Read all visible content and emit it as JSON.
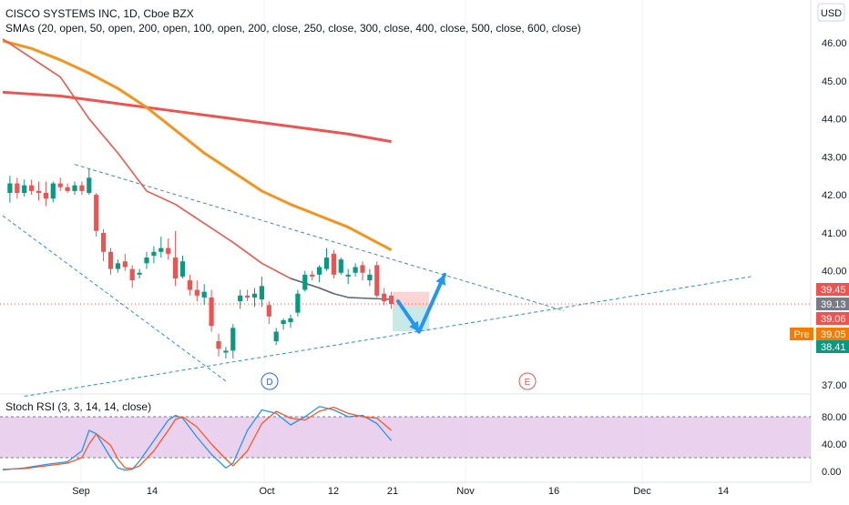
{
  "header": {
    "title": "CISCO SYSTEMS INC, 1D, Cboe BZX",
    "sma_label": "SMAs (20, open, 50, open, 200, open, 100, open, 200, close, 250, close, 300, close, 400, close, 500, close, 600, close)",
    "currency": "USD"
  },
  "rsi_panel": {
    "label": "Stoch RSI (3, 3, 14, 14, close)"
  },
  "price_badges": [
    {
      "value": "39.45",
      "color": "#ef5350"
    },
    {
      "value": "39.13",
      "color": "#787b86"
    },
    {
      "value": "39.06",
      "color": "#ef5350"
    },
    {
      "value": "39.05",
      "color": "#f57c00",
      "tag": "Pre"
    },
    {
      "value": "38.41",
      "color": "#089981"
    }
  ],
  "markers": [
    {
      "letter": "D",
      "color": "#2962ff"
    },
    {
      "letter": "E",
      "color": "#ef5350"
    }
  ],
  "colors": {
    "up": "#089981",
    "down": "#ef5350",
    "sma_red": "#f0574a",
    "sma_orange": "#f7931a",
    "sma_long": "#ef5350",
    "trend": "#2a8fd9",
    "arrow": "#2196f3",
    "rsi_k": "#2196f3",
    "rsi_d": "#ff5722",
    "rsi_band": "#e1bee7"
  },
  "chart_data": [
    {
      "type": "candlestick",
      "title": "CISCO SYSTEMS INC, 1D, Cboe BZX",
      "ylim": [
        36.8,
        46.6
      ],
      "y_ticks": [
        "46.00",
        "45.00",
        "44.00",
        "43.00",
        "42.00",
        "41.00",
        "40.00",
        "37.00"
      ],
      "x_ticks": [
        "Sep",
        "14",
        "Oct",
        "12",
        "21",
        "Nov",
        "16",
        "Dec",
        "14"
      ],
      "candles": [
        {
          "x": 1,
          "o": 42.05,
          "h": 42.5,
          "l": 41.8,
          "c": 42.3
        },
        {
          "x": 2,
          "o": 42.3,
          "h": 42.45,
          "l": 41.9,
          "c": 42.05
        },
        {
          "x": 3,
          "o": 42.05,
          "h": 42.4,
          "l": 41.95,
          "c": 42.25
        },
        {
          "x": 4,
          "o": 42.25,
          "h": 42.4,
          "l": 42.0,
          "c": 42.1
        },
        {
          "x": 5,
          "o": 42.1,
          "h": 42.35,
          "l": 41.85,
          "c": 42.05
        },
        {
          "x": 6,
          "o": 42.05,
          "h": 42.35,
          "l": 41.7,
          "c": 41.9
        },
        {
          "x": 7,
          "o": 41.9,
          "h": 42.35,
          "l": 41.8,
          "c": 42.3
        },
        {
          "x": 8,
          "o": 42.3,
          "h": 42.45,
          "l": 42.1,
          "c": 42.2
        },
        {
          "x": 9,
          "o": 42.2,
          "h": 42.3,
          "l": 42.05,
          "c": 42.1
        },
        {
          "x": 10,
          "o": 42.1,
          "h": 42.35,
          "l": 42.0,
          "c": 42.25
        },
        {
          "x": 11,
          "o": 42.25,
          "h": 42.35,
          "l": 42.0,
          "c": 42.1
        },
        {
          "x": 12,
          "o": 42.05,
          "h": 42.7,
          "l": 42.0,
          "c": 42.45
        },
        {
          "x": 13,
          "o": 42.0,
          "h": 42.05,
          "l": 40.9,
          "c": 41.05
        },
        {
          "x": 14,
          "o": 41.0,
          "h": 41.1,
          "l": 40.25,
          "c": 40.5
        },
        {
          "x": 15,
          "o": 40.5,
          "h": 40.6,
          "l": 39.9,
          "c": 40.05
        },
        {
          "x": 16,
          "o": 40.05,
          "h": 40.3,
          "l": 39.95,
          "c": 40.2
        },
        {
          "x": 17,
          "o": 40.25,
          "h": 40.45,
          "l": 40.0,
          "c": 40.1
        },
        {
          "x": 18,
          "o": 40.05,
          "h": 40.15,
          "l": 39.55,
          "c": 39.75
        },
        {
          "x": 19,
          "o": 39.9,
          "h": 40.05,
          "l": 39.8,
          "c": 39.95
        },
        {
          "x": 20,
          "o": 40.2,
          "h": 40.5,
          "l": 40.05,
          "c": 40.35
        },
        {
          "x": 21,
          "o": 40.4,
          "h": 40.65,
          "l": 40.2,
          "c": 40.5
        },
        {
          "x": 22,
          "o": 40.5,
          "h": 40.9,
          "l": 40.35,
          "c": 40.6
        },
        {
          "x": 23,
          "o": 40.6,
          "h": 40.85,
          "l": 40.3,
          "c": 40.45
        },
        {
          "x": 24,
          "o": 40.35,
          "h": 41.05,
          "l": 39.6,
          "c": 39.8
        },
        {
          "x": 25,
          "o": 39.85,
          "h": 40.4,
          "l": 39.8,
          "c": 40.25
        },
        {
          "x": 26,
          "o": 39.75,
          "h": 39.9,
          "l": 39.35,
          "c": 39.5
        },
        {
          "x": 27,
          "o": 39.5,
          "h": 39.75,
          "l": 39.2,
          "c": 39.35
        },
        {
          "x": 28,
          "o": 39.3,
          "h": 39.65,
          "l": 39.1,
          "c": 39.45
        },
        {
          "x": 29,
          "o": 39.3,
          "h": 39.5,
          "l": 38.4,
          "c": 38.55
        },
        {
          "x": 30,
          "o": 38.15,
          "h": 38.35,
          "l": 37.75,
          "c": 37.95
        },
        {
          "x": 31,
          "o": 37.85,
          "h": 38.0,
          "l": 37.7,
          "c": 37.9
        },
        {
          "x": 32,
          "o": 37.9,
          "h": 38.6,
          "l": 37.7,
          "c": 38.5
        },
        {
          "x": 33,
          "o": 39.2,
          "h": 39.5,
          "l": 39.0,
          "c": 39.35
        },
        {
          "x": 34,
          "o": 39.35,
          "h": 39.5,
          "l": 39.2,
          "c": 39.3
        },
        {
          "x": 35,
          "o": 39.3,
          "h": 39.55,
          "l": 39.05,
          "c": 39.4
        },
        {
          "x": 36,
          "o": 39.25,
          "h": 39.85,
          "l": 39.05,
          "c": 39.6
        },
        {
          "x": 37,
          "o": 39.1,
          "h": 39.2,
          "l": 38.6,
          "c": 38.8
        },
        {
          "x": 38,
          "o": 38.15,
          "h": 38.5,
          "l": 38.05,
          "c": 38.4
        },
        {
          "x": 39,
          "o": 38.6,
          "h": 38.75,
          "l": 38.45,
          "c": 38.7
        },
        {
          "x": 40,
          "o": 38.65,
          "h": 38.85,
          "l": 38.5,
          "c": 38.75
        },
        {
          "x": 41,
          "o": 38.9,
          "h": 39.5,
          "l": 38.8,
          "c": 39.4
        },
        {
          "x": 42,
          "o": 39.5,
          "h": 40.0,
          "l": 39.45,
          "c": 39.9
        },
        {
          "x": 43,
          "o": 39.9,
          "h": 40.0,
          "l": 39.75,
          "c": 39.85
        },
        {
          "x": 44,
          "o": 39.9,
          "h": 40.15,
          "l": 39.7,
          "c": 40.1
        },
        {
          "x": 45,
          "o": 40.05,
          "h": 40.6,
          "l": 40.0,
          "c": 40.35
        },
        {
          "x": 46,
          "o": 40.45,
          "h": 40.55,
          "l": 39.8,
          "c": 39.9
        },
        {
          "x": 47,
          "o": 39.95,
          "h": 40.35,
          "l": 39.9,
          "c": 40.3
        },
        {
          "x": 48,
          "o": 39.85,
          "h": 40.05,
          "l": 39.65,
          "c": 39.9
        },
        {
          "x": 49,
          "o": 39.95,
          "h": 40.2,
          "l": 39.85,
          "c": 40.1
        },
        {
          "x": 50,
          "o": 40.15,
          "h": 40.25,
          "l": 39.75,
          "c": 39.95
        },
        {
          "x": 51,
          "o": 39.75,
          "h": 40.05,
          "l": 39.6,
          "c": 39.9
        },
        {
          "x": 52,
          "o": 40.15,
          "h": 40.25,
          "l": 39.3,
          "c": 39.35
        },
        {
          "x": 53,
          "o": 39.4,
          "h": 39.55,
          "l": 39.1,
          "c": 39.2
        },
        {
          "x": 54,
          "o": 39.35,
          "h": 39.45,
          "l": 39.0,
          "c": 39.13
        }
      ],
      "sma_fast": [
        [
          0,
          46.1
        ],
        [
          4,
          45.6
        ],
        [
          8,
          45.1
        ],
        [
          12,
          44.0
        ],
        [
          16,
          43.1
        ],
        [
          20,
          42.1
        ],
        [
          24,
          41.75
        ],
        [
          28,
          41.25
        ],
        [
          32,
          40.75
        ],
        [
          36,
          40.2
        ],
        [
          40,
          39.8
        ],
        [
          44,
          39.55
        ],
        [
          46,
          39.4
        ],
        [
          48,
          39.3
        ],
        [
          54,
          39.25
        ]
      ],
      "sma_mid": [
        [
          0,
          46.05
        ],
        [
          4,
          45.85
        ],
        [
          8,
          45.55
        ],
        [
          12,
          45.2
        ],
        [
          16,
          44.8
        ],
        [
          20,
          44.3
        ],
        [
          24,
          43.7
        ],
        [
          28,
          43.1
        ],
        [
          32,
          42.6
        ],
        [
          36,
          42.1
        ],
        [
          40,
          41.75
        ],
        [
          44,
          41.45
        ],
        [
          48,
          41.15
        ],
        [
          51,
          40.85
        ],
        [
          54,
          40.55
        ]
      ],
      "sma_long": [
        [
          0,
          44.7
        ],
        [
          8,
          44.6
        ],
        [
          16,
          44.4
        ],
        [
          24,
          44.2
        ],
        [
          32,
          44.0
        ],
        [
          40,
          43.8
        ],
        [
          48,
          43.6
        ],
        [
          54,
          43.4
        ]
      ],
      "trendlines": [
        {
          "x1": 10,
          "y1": 42.8,
          "x2": 78,
          "y2": 38.95
        },
        {
          "x1": 0,
          "y1": 41.45,
          "x2": 31,
          "y2": 37.1
        },
        {
          "x1": 3,
          "y1": 36.7,
          "x2": 104,
          "y2": 39.85
        }
      ],
      "current_price": 39.13
    },
    {
      "type": "line",
      "title": "Stoch RSI (3, 3, 14, 14, close)",
      "ylim": [
        -5,
        100
      ],
      "y_ticks": [
        "80.00",
        "40.00",
        "0.00"
      ],
      "bands": [
        20,
        80
      ],
      "series": [
        {
          "name": "K",
          "values": [
            [
              0,
              2
            ],
            [
              3,
              5
            ],
            [
              6,
              10
            ],
            [
              9,
              14
            ],
            [
              11,
              30
            ],
            [
              12,
              60
            ],
            [
              13,
              55
            ],
            [
              15,
              20
            ],
            [
              16,
              5
            ],
            [
              17,
              2
            ],
            [
              18,
              3
            ],
            [
              19,
              15
            ],
            [
              21,
              45
            ],
            [
              23,
              75
            ],
            [
              24,
              82
            ],
            [
              25,
              78
            ],
            [
              27,
              50
            ],
            [
              29,
              25
            ],
            [
              31,
              5
            ],
            [
              32,
              12
            ],
            [
              34,
              60
            ],
            [
              36,
              90
            ],
            [
              38,
              85
            ],
            [
              40,
              68
            ],
            [
              42,
              80
            ],
            [
              44,
              95
            ],
            [
              46,
              90
            ],
            [
              48,
              80
            ],
            [
              50,
              82
            ],
            [
              52,
              70
            ],
            [
              54,
              45
            ]
          ]
        },
        {
          "name": "D",
          "values": [
            [
              0,
              3
            ],
            [
              3,
              4
            ],
            [
              6,
              8
            ],
            [
              9,
              12
            ],
            [
              11,
              20
            ],
            [
              12,
              40
            ],
            [
              13,
              55
            ],
            [
              15,
              38
            ],
            [
              16,
              18
            ],
            [
              17,
              5
            ],
            [
              18,
              4
            ],
            [
              19,
              8
            ],
            [
              21,
              30
            ],
            [
              23,
              60
            ],
            [
              24,
              76
            ],
            [
              25,
              80
            ],
            [
              27,
              65
            ],
            [
              29,
              40
            ],
            [
              31,
              18
            ],
            [
              32,
              8
            ],
            [
              34,
              30
            ],
            [
              36,
              70
            ],
            [
              38,
              88
            ],
            [
              40,
              78
            ],
            [
              42,
              75
            ],
            [
              44,
              88
            ],
            [
              46,
              94
            ],
            [
              48,
              85
            ],
            [
              50,
              80
            ],
            [
              52,
              78
            ],
            [
              54,
              60
            ]
          ]
        }
      ]
    }
  ]
}
